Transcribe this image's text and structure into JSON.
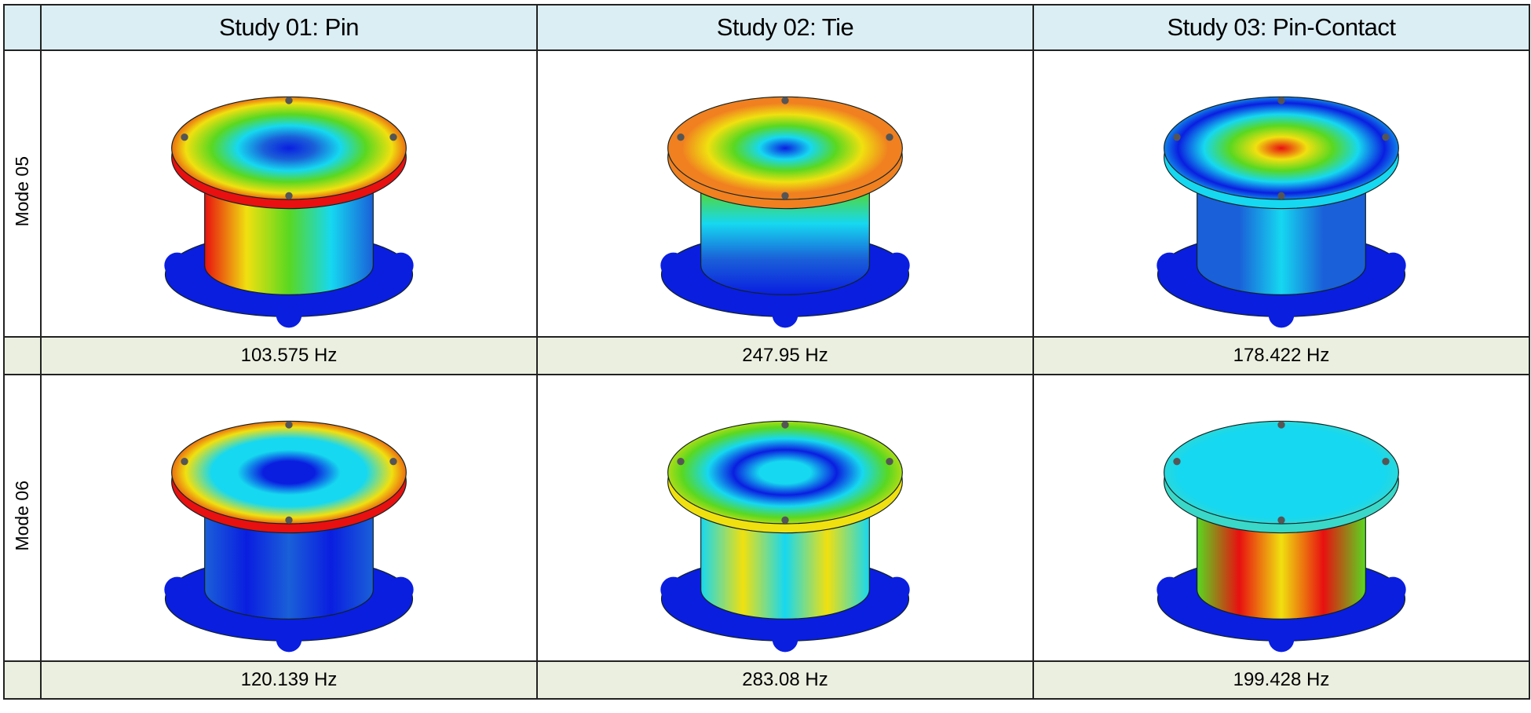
{
  "header": {
    "columns": [
      "Study 01: Pin",
      "Study 02: Tie",
      "Study 03: Pin-Contact"
    ]
  },
  "rows": [
    {
      "label": "Mode 05",
      "frequencies": [
        "103.575 Hz",
        "247.95 Hz",
        "178.422 Hz"
      ]
    },
    {
      "label": "Mode 06",
      "frequencies": [
        "120.139 Hz",
        "283.08 Hz",
        "199.428 Hz"
      ]
    }
  ]
}
